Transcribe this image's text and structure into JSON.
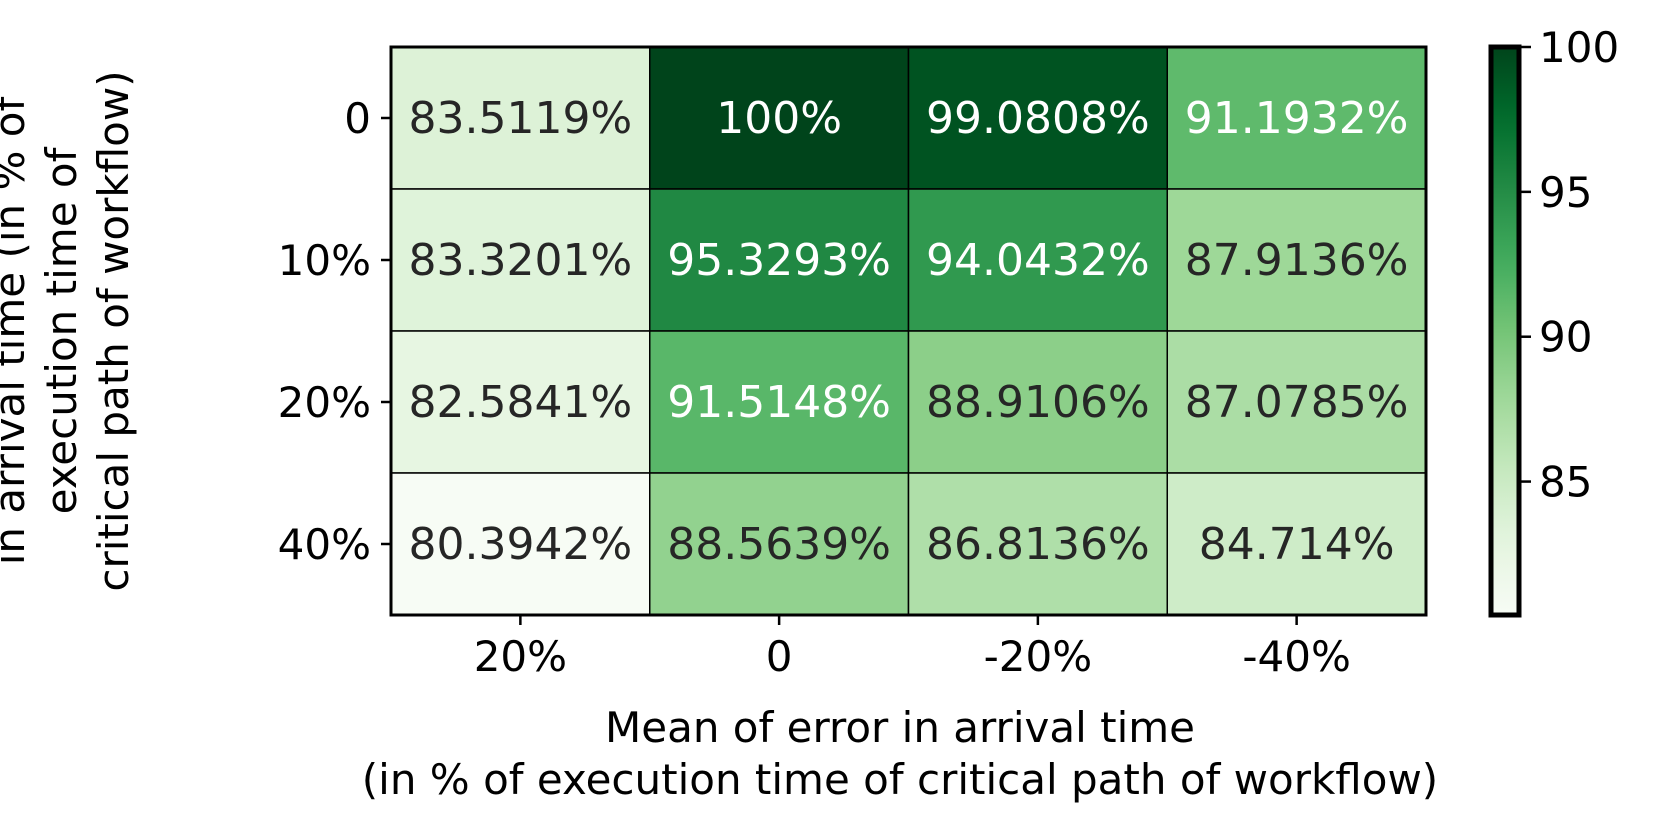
{
  "chart_data": {
    "type": "heatmap",
    "title": "",
    "xlabel": "Mean of error in arrival time\n(in % of execution time of critical path of workflow)",
    "ylabel": "Standard Deviation of error\nin arrival time (in % of\nexecution time of\ncritical path of workflow)",
    "x_categories": [
      "20%",
      "0",
      "-20%",
      "-40%"
    ],
    "y_categories": [
      "0",
      "10%",
      "20%",
      "40%"
    ],
    "values": [
      [
        83.5119,
        100,
        99.0808,
        91.1932
      ],
      [
        83.3201,
        95.3293,
        94.0432,
        87.9136
      ],
      [
        82.5841,
        91.5148,
        88.9106,
        87.0785
      ],
      [
        80.3942,
        88.5639,
        86.8136,
        84.714
      ]
    ],
    "cell_labels": [
      [
        "83.5119%",
        "100%",
        "99.0808%",
        "91.1932%"
      ],
      [
        "83.3201%",
        "95.3293%",
        "94.0432%",
        "87.9136%"
      ],
      [
        "82.5841%",
        "91.5148%",
        "88.9106%",
        "87.0785%"
      ],
      [
        "80.3942%",
        "88.5639%",
        "86.8136%",
        "84.714%"
      ]
    ],
    "colorbar": {
      "colormap": "Greens",
      "range": [
        80.3942,
        100
      ],
      "ticks": [
        85,
        90,
        95,
        100
      ],
      "tick_labels": [
        "85",
        "90",
        "95",
        "100"
      ]
    }
  }
}
